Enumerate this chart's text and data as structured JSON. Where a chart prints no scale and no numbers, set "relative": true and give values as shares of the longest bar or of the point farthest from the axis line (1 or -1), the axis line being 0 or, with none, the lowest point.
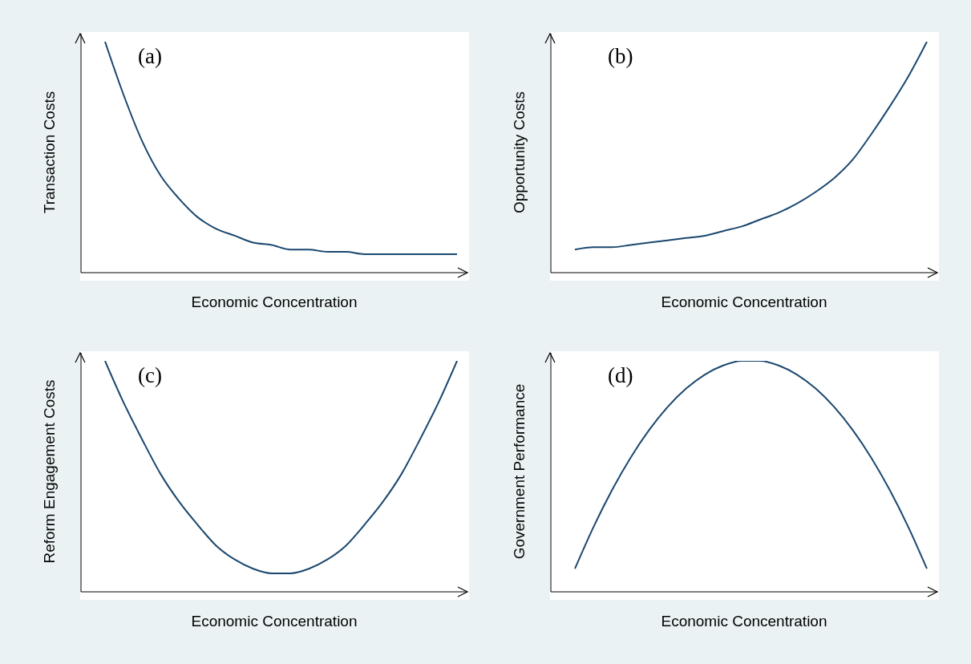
{
  "chart_data": [
    {
      "type": "line",
      "relative": true,
      "xlabel": "Economic Concentration",
      "ylabel": "Transaction Costs",
      "annotations": [
        "(a)"
      ],
      "categories": [
        null,
        null,
        null,
        null,
        null,
        null,
        null,
        null,
        null,
        null,
        null,
        null,
        null,
        null,
        null,
        null,
        null,
        null,
        null,
        null
      ],
      "color": "#1a476f",
      "values": [
        1.0,
        0.77,
        0.57,
        0.42,
        0.32,
        0.24,
        0.19,
        0.16,
        0.13,
        0.12,
        0.1,
        0.1,
        0.09,
        0.09,
        0.08,
        0.08,
        0.08,
        0.08,
        0.08,
        0.08
      ]
    },
    {
      "type": "line",
      "relative": true,
      "xlabel": "Economic Concentration",
      "ylabel": "Opportunity Costs",
      "annotations": [
        "(b)"
      ],
      "categories": [
        null,
        null,
        null,
        null,
        null,
        null,
        null,
        null,
        null,
        null,
        null,
        null,
        null,
        null,
        null,
        null,
        null,
        null,
        null,
        null
      ],
      "color": "#1a476f",
      "values": [
        0.1,
        0.11,
        0.11,
        0.12,
        0.13,
        0.14,
        0.15,
        0.16,
        0.18,
        0.2,
        0.23,
        0.26,
        0.3,
        0.35,
        0.41,
        0.49,
        0.6,
        0.72,
        0.85,
        1.0
      ]
    },
    {
      "type": "line",
      "relative": true,
      "xlabel": "Economic Concentration",
      "ylabel": "Reform Engagement Costs",
      "annotations": [
        "(c)"
      ],
      "categories": [
        null,
        null,
        null,
        null,
        null,
        null,
        null,
        null,
        null,
        null,
        null,
        null,
        null,
        null,
        null,
        null,
        null,
        null,
        null,
        null
      ],
      "color": "#1a476f",
      "values": [
        1.0,
        0.82,
        0.66,
        0.51,
        0.39,
        0.29,
        0.2,
        0.14,
        0.1,
        0.08,
        0.08,
        0.1,
        0.14,
        0.2,
        0.29,
        0.39,
        0.51,
        0.66,
        0.82,
        1.0
      ]
    },
    {
      "type": "line",
      "relative": true,
      "xlabel": "Economic Concentration",
      "ylabel": "Government Performance",
      "annotations": [
        "(d)"
      ],
      "categories": [
        null,
        null,
        null,
        null,
        null,
        null,
        null,
        null,
        null,
        null,
        null,
        null,
        null,
        null,
        null,
        null,
        null,
        null,
        null,
        null
      ],
      "color": "#1a476f",
      "values": [
        0.1,
        0.28,
        0.44,
        0.58,
        0.7,
        0.8,
        0.88,
        0.94,
        0.98,
        1.0,
        1.0,
        0.98,
        0.94,
        0.88,
        0.8,
        0.7,
        0.58,
        0.44,
        0.28,
        0.1
      ]
    }
  ]
}
